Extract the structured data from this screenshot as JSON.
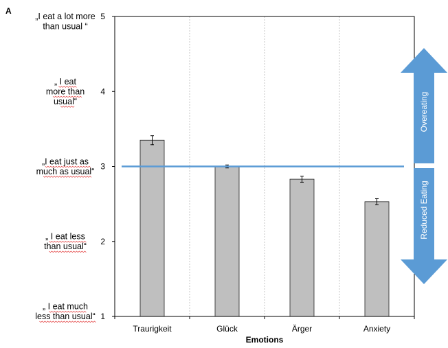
{
  "panel_label": "A",
  "chart_data": {
    "type": "bar",
    "title": "",
    "xlabel": "Emotions",
    "ylabel": "",
    "ylim": [
      1,
      5
    ],
    "yticks": [
      1,
      2,
      3,
      4,
      5
    ],
    "categories": [
      "Traurigkeit",
      "Glück",
      "Ärger",
      "Anxiety"
    ],
    "values": [
      3.35,
      3.0,
      2.83,
      2.53
    ],
    "error": [
      0.06,
      0.02,
      0.04,
      0.04
    ],
    "bar_color": "#bfbfbf",
    "reference_line": {
      "y": 3.0,
      "color": "#5b9bd5"
    },
    "grid": {
      "vertical": true,
      "horizontal": false
    },
    "y_descriptors": [
      {
        "y": 5,
        "lines": [
          "„I eat  a lot more",
          "than  usual  “"
        ]
      },
      {
        "y": 4,
        "lines": [
          "„ I eat",
          "more  than",
          "usual“"
        ]
      },
      {
        "y": 3,
        "lines": [
          "„I eat just as",
          "much  as usual“"
        ]
      },
      {
        "y": 2,
        "lines": [
          "„ I eat less",
          "than  usual“"
        ]
      },
      {
        "y": 1,
        "lines": [
          "„ I eat much",
          "less than  usual“"
        ]
      }
    ],
    "arrows": [
      {
        "label": "Overeating",
        "direction": "up",
        "color": "#5b9bd5"
      },
      {
        "label": "Reduced Eating",
        "direction": "down",
        "color": "#5b9bd5"
      }
    ]
  }
}
